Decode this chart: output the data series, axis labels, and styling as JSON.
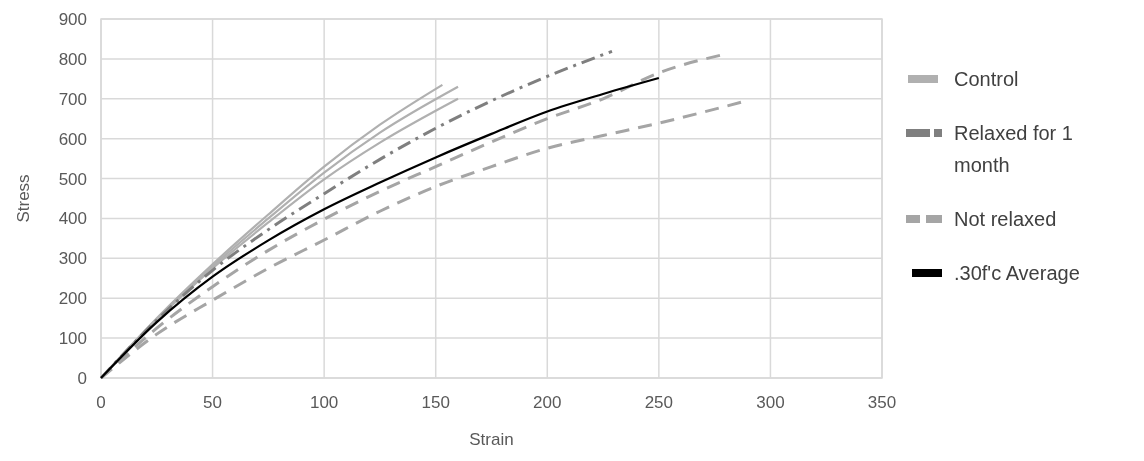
{
  "chart_data": {
    "type": "line",
    "xlabel": "Strain",
    "ylabel": "Stress",
    "xlim": [
      0,
      350
    ],
    "xticks": [
      0,
      50,
      100,
      150,
      200,
      250,
      300,
      350
    ],
    "ylim": [
      0,
      900
    ],
    "yticks": [
      0,
      100,
      200,
      300,
      400,
      500,
      600,
      700,
      800,
      900
    ],
    "grid": true,
    "legend": "right",
    "marker": "none",
    "series": [
      {
        "name": "Control",
        "color": "#b0b0b0",
        "line_style": "solid",
        "x": [
          0,
          25,
          50,
          75,
          100,
          125,
          153
        ],
        "values": [
          0,
          150,
          285,
          410,
          530,
          635,
          735
        ]
      },
      {
        "color": "#b0b0b0",
        "line_style": "solid",
        "x": [
          0,
          25,
          50,
          75,
          100,
          125,
          160
        ],
        "values": [
          0,
          148,
          280,
          400,
          515,
          615,
          730
        ]
      },
      {
        "color": "#b0b0b0",
        "line_style": "solid",
        "x": [
          0,
          25,
          50,
          75,
          100,
          125,
          160
        ],
        "values": [
          0,
          146,
          275,
          390,
          498,
          590,
          700
        ]
      },
      {
        "name": "Relaxed for 1 month",
        "color": "#7f7f7f",
        "line_style": "dashdot",
        "x": [
          0,
          25,
          50,
          75,
          100,
          125,
          150,
          175,
          200,
          229
        ],
        "values": [
          0,
          145,
          270,
          372,
          462,
          548,
          626,
          695,
          756,
          819
        ]
      },
      {
        "name": "Not relaxed",
        "color": "#a5a5a5",
        "line_style": "dashed",
        "x": [
          0,
          25,
          50,
          75,
          100,
          125,
          150,
          175,
          200,
          225,
          250,
          279
        ],
        "values": [
          0,
          125,
          229,
          320,
          398,
          468,
          530,
          592,
          650,
          700,
          765,
          811
        ]
      },
      {
        "color": "#a5a5a5",
        "line_style": "dashed",
        "x": [
          0,
          25,
          50,
          75,
          100,
          125,
          150,
          175,
          200,
          225,
          250,
          288
        ],
        "values": [
          0,
          110,
          195,
          275,
          346,
          418,
          480,
          530,
          576,
          608,
          639,
          693
        ]
      },
      {
        "name": ".30f'c Average",
        "color": "#000000",
        "line_style": "solid",
        "x": [
          0,
          25,
          50,
          75,
          100,
          125,
          150,
          175,
          200,
          225,
          250
        ],
        "values": [
          0,
          140,
          254,
          345,
          423,
          490,
          553,
          612,
          668,
          712,
          752
        ]
      }
    ]
  }
}
